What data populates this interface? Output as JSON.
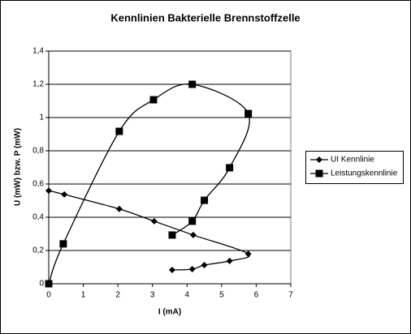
{
  "chart_data": {
    "type": "scatter-smooth",
    "title": "Kennlinien Bakterielle Brennstoffzelle",
    "x_label": "I (mA)",
    "y_label": "U (mW) bzw. P (mW)",
    "xlim": [
      0,
      7
    ],
    "xticks": [
      0,
      1,
      2,
      3,
      4,
      5,
      6,
      7
    ],
    "ylim": [
      0,
      1.4
    ],
    "yticks": [
      0,
      {
        "value": 0.2,
        "label": "0,2"
      },
      {
        "value": 0.4,
        "label": "0,4"
      },
      {
        "value": 0.6,
        "label": "0,6"
      },
      {
        "value": 0.8,
        "label": "0,8"
      },
      1,
      {
        "value": 1.2,
        "label": "1,2"
      },
      {
        "value": 1.4,
        "label": "1,4"
      }
    ],
    "grid": true,
    "legend": "right",
    "series": [
      {
        "name": "UI Kennlinie",
        "color": "#000000",
        "marker": "diamond",
        "x": [
          0,
          0.45,
          2.04,
          3.05,
          4.18,
          5.77,
          5.23,
          4.5,
          4.15,
          3.57
        ],
        "values": [
          0.56,
          0.537,
          0.45,
          0.376,
          0.293,
          0.18,
          0.137,
          0.112,
          0.088,
          0.083
        ]
      },
      {
        "name": "Leistungskennlinie",
        "color": "#000000",
        "marker": "square",
        "x": [
          0,
          0.42,
          2.04,
          3.03,
          4.15,
          5.77,
          5.23,
          4.5,
          4.15,
          3.57
        ],
        "values": [
          0,
          0.24,
          0.917,
          1.107,
          1.2,
          1.024,
          0.698,
          0.502,
          0.376,
          0.293
        ]
      }
    ]
  }
}
